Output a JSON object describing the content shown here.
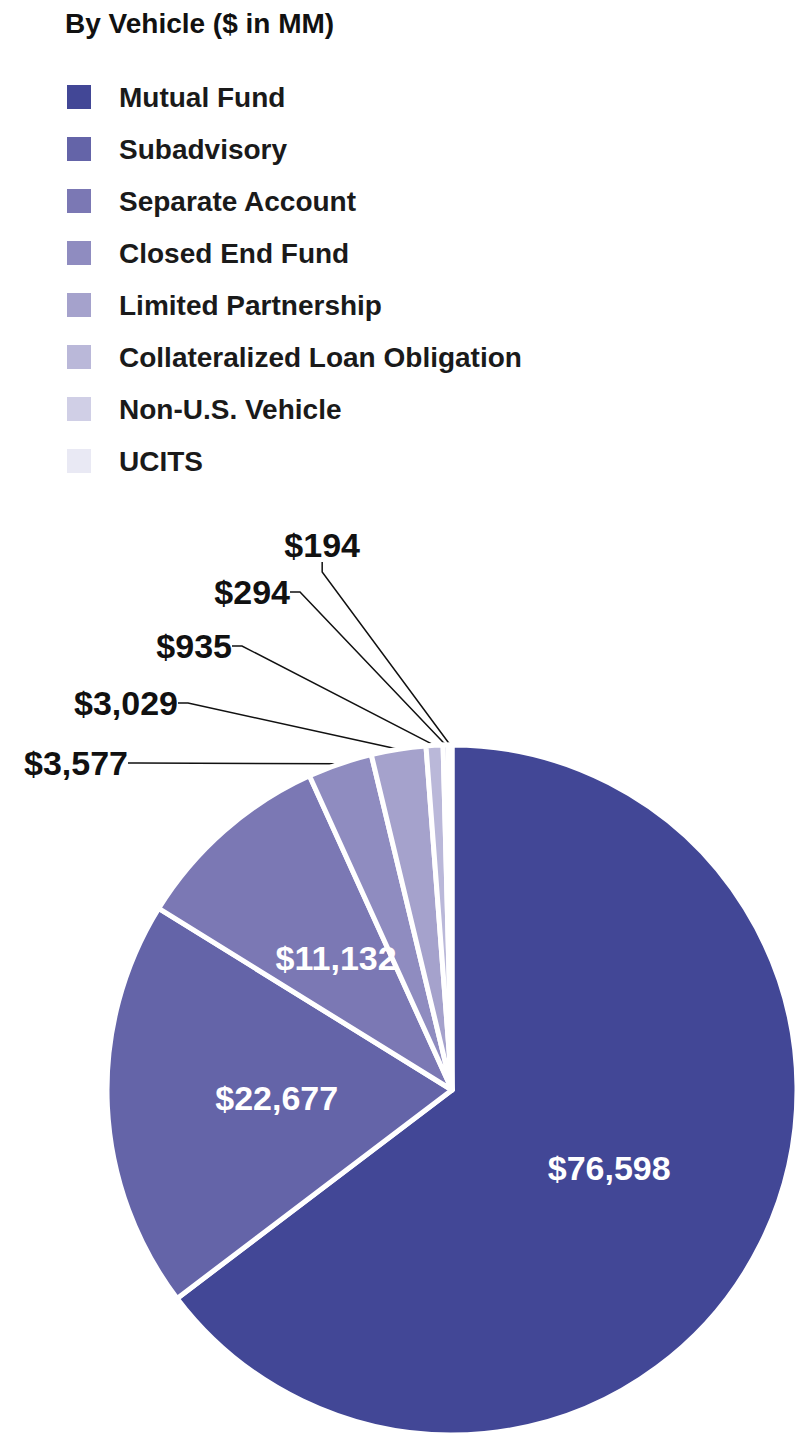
{
  "chart_data": {
    "type": "pie",
    "title": "By Vehicle ($ in MM)",
    "categories": [
      "Mutual Fund",
      "Subadvisory",
      "Separate Account",
      "Closed End Fund",
      "Limited Partnership",
      "Collateralized Loan Obligation",
      "Non-U.S. Vehicle",
      "UCITS"
    ],
    "values": [
      76598,
      22677,
      11132,
      3577,
      3029,
      935,
      294,
      194
    ],
    "value_labels": [
      "$76,598",
      "$22,677",
      "$11,132",
      "$3,577",
      "$3,029",
      "$935",
      "$294",
      "$194"
    ],
    "colors": [
      "#424796",
      "#6464a8",
      "#7b78b4",
      "#8f8cc0",
      "#a5a2cc",
      "#bab8d9",
      "#d0cfe6",
      "#e9e9f4"
    ],
    "legend": "top-left",
    "data_labels": true
  }
}
